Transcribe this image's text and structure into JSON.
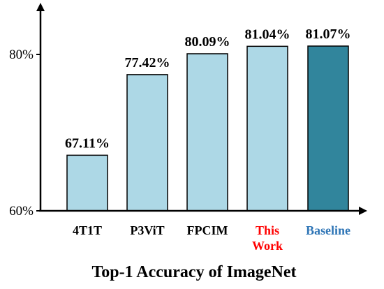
{
  "chart_data": {
    "type": "bar",
    "title": "Top-1 Accuracy of ImageNet",
    "xlabel": "",
    "ylabel": "",
    "categories": [
      "4T1T",
      "P3ViT",
      "FPCIM",
      "This Work",
      "Baseline"
    ],
    "category_lines": [
      [
        "4T1T"
      ],
      [
        "P3ViT"
      ],
      [
        "FPCIM"
      ],
      [
        "This",
        "Work"
      ],
      [
        "Baseline"
      ]
    ],
    "values": [
      67.11,
      77.42,
      80.09,
      81.04,
      81.07
    ],
    "data_labels": [
      "67.11%",
      "77.42%",
      "80.09%",
      "81.04%",
      "81.07%"
    ],
    "ylim": [
      60,
      81.07
    ],
    "yticks": [
      60,
      80
    ],
    "ytick_labels": [
      "60%",
      "80%"
    ],
    "grid": false,
    "legend": "none",
    "bar_colors": [
      "#add8e6",
      "#add8e6",
      "#add8e6",
      "#add8e6",
      "#31859c"
    ],
    "category_label_colors": [
      "#000000",
      "#000000",
      "#000000",
      "#ff0000",
      "#2e75b6"
    ],
    "note": ""
  }
}
